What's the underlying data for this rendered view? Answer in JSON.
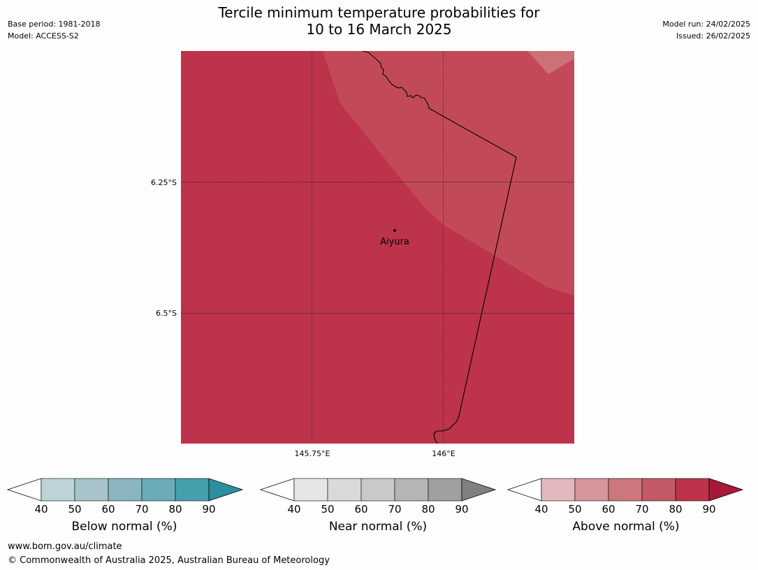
{
  "title_line1": "Tercile minimum temperature probabilities for",
  "title_line2": "10 to 16 March 2025",
  "meta": {
    "base_period": "Base period: 1981-2018",
    "model": "Model: ACCESS-S2",
    "model_run": "Model run: 24/02/2025",
    "issued": "Issued: 26/02/2025"
  },
  "map": {
    "lat_labels": [
      "6.25°S",
      "6.5°S"
    ],
    "lon_labels": [
      "145.75°E",
      "146°E"
    ],
    "place": "Aiyura",
    "colors": {
      "above_80_90": "#bc334b",
      "above_70_80": "#c24a58",
      "above_60_70": "#cc7178",
      "border": "#000000"
    }
  },
  "colorbars": [
    {
      "label": "Below normal (%)",
      "ticks": [
        "40",
        "50",
        "60",
        "70",
        "80",
        "90"
      ],
      "colors": [
        "#bdd3d9",
        "#a7c4ca",
        "#8ab4c0",
        "#6aabb7",
        "#45a0ad",
        "#2d8f9c"
      ]
    },
    {
      "label": "Near normal (%)",
      "ticks": [
        "40",
        "50",
        "60",
        "70",
        "80",
        "90"
      ],
      "colors": [
        "#e6e6e6",
        "#d9d9d9",
        "#c9c9c9",
        "#b5b5b5",
        "#a0a0a0",
        "#808080"
      ]
    },
    {
      "label": "Above normal (%)",
      "ticks": [
        "40",
        "50",
        "60",
        "70",
        "80",
        "90"
      ],
      "colors": [
        "#e3b9be",
        "#d6969c",
        "#cc777d",
        "#c45a67",
        "#bc334b",
        "#a8183a"
      ]
    }
  ],
  "footer": {
    "url": "www.bom.gov.au/climate",
    "copyright": "© Commonwealth of Australia 2025, Australian Bureau of Meteorology"
  }
}
